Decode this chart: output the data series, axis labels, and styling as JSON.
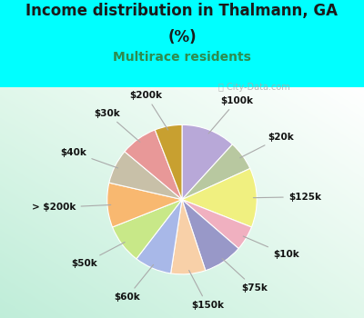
{
  "title_line1": "Income distribution in Thalmann, GA",
  "title_line2": "(%)",
  "subtitle": "Multirace residents",
  "bg_color": "#00ffff",
  "chart_bg_colors": [
    "#ffffff",
    "#d0ede0"
  ],
  "slices_labels": [
    "$100k",
    "$20k",
    "$125k",
    "$10k",
    "$75k",
    "$150k",
    "$60k",
    "$50k",
    "> $200k",
    "$40k",
    "$30k",
    "$200k"
  ],
  "slices_values": [
    11.0,
    6.0,
    12.0,
    5.0,
    8.0,
    7.0,
    7.5,
    8.0,
    9.0,
    7.0,
    7.5,
    5.5
  ],
  "slices_colors": [
    "#b8a8d8",
    "#b8c8a0",
    "#f0f080",
    "#f0b0c0",
    "#9898c8",
    "#f8d0a8",
    "#a8b8e8",
    "#c8e888",
    "#f8b870",
    "#c8c0a8",
    "#e89898",
    "#c8a030"
  ],
  "startangle": 90,
  "label_distance": 1.42,
  "label_fontsize": 7.5,
  "title_fontsize": 12,
  "subtitle_fontsize": 10,
  "watermark_text": "ⓘ City-Data.com",
  "watermark_color": "#aaaaaa"
}
